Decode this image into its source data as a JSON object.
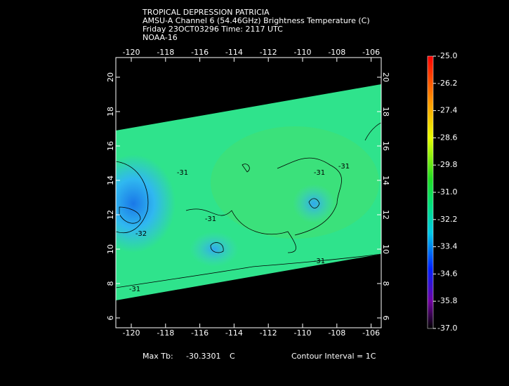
{
  "header": {
    "title": "TROPICAL DEPRESSION PATRICIA",
    "product": "AMSU-A Channel 6 (54.46GHz) Brightness Temperature (C)",
    "time": "Friday 23OCT03296 Time: 2117 UTC",
    "satellite": "NOAA-16"
  },
  "map": {
    "lon_ticks": [
      -120,
      -118,
      -116,
      -114,
      -112,
      -110,
      -108,
      -106
    ],
    "lat_ticks": [
      20,
      18,
      16,
      14,
      12,
      10,
      8,
      6
    ],
    "contour_labels": [
      "-31",
      "-31",
      "-31",
      "-31",
      "-32",
      "-31",
      "-31"
    ]
  },
  "colorbar": {
    "lim": [
      -37,
      -25
    ],
    "ticks": [
      {
        "value": -25,
        "label": "-25.0"
      },
      {
        "value": -26.2,
        "label": "-26.2"
      },
      {
        "value": -27.4,
        "label": "-27.4"
      },
      {
        "value": -28.6,
        "label": "-28.6"
      },
      {
        "value": -29.8,
        "label": "-29.8"
      },
      {
        "value": -31,
        "label": "-31.0"
      },
      {
        "value": -32.2,
        "label": "-32.2"
      },
      {
        "value": -33.4,
        "label": "-33.4"
      },
      {
        "value": -34.6,
        "label": "-34.6"
      },
      {
        "value": -35.8,
        "label": "-35.8"
      },
      {
        "value": -37,
        "label": "-37.0"
      }
    ]
  },
  "footer": {
    "max_label": "Max Tb:",
    "max_value": "-30.3301",
    "unit": "C",
    "contour_interval": "Contour Interval = 1C"
  }
}
